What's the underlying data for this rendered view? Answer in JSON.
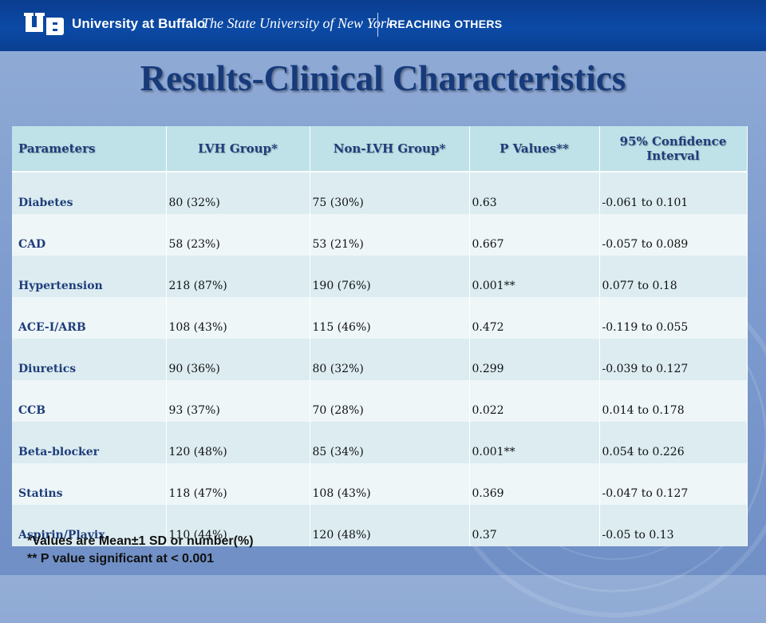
{
  "header": {
    "brand": "University at Buffalo",
    "institution": "The State University of New York",
    "tagline": "REACHING OTHERS"
  },
  "slide": {
    "title": "Results-Clinical Characteristics"
  },
  "table": {
    "columns": [
      "Parameters",
      "LVH Group*",
      "Non-LVH Group*",
      "P Values**",
      "95% Confidence Interval"
    ],
    "rows": [
      {
        "parameter": "Diabetes",
        "lvh": "80 (32%)",
        "non_lvh": "75 (30%)",
        "p": "0.63",
        "ci": "-0.061 to 0.101"
      },
      {
        "parameter": "CAD",
        "lvh": "58 (23%)",
        "non_lvh": "53 (21%)",
        "p": "0.667",
        "ci": "-0.057 to 0.089"
      },
      {
        "parameter": "Hypertension",
        "lvh": "218 (87%)",
        "non_lvh": "190 (76%)",
        "p": "0.001**",
        "ci": "0.077 to 0.18"
      },
      {
        "parameter": "ACE-I/ARB",
        "lvh": "108 (43%)",
        "non_lvh": "115 (46%)",
        "p": "0.472",
        "ci": "-0.119 to 0.055"
      },
      {
        "parameter": "Diuretics",
        "lvh": "90 (36%)",
        "non_lvh": "80 (32%)",
        "p": "0.299",
        "ci": "-0.039 to 0.127"
      },
      {
        "parameter": "CCB",
        "lvh": "93 (37%)",
        "non_lvh": "70 (28%)",
        "p": "0.022",
        "ci": "0.014 to 0.178"
      },
      {
        "parameter": "Beta-blocker",
        "lvh": "120 (48%)",
        "non_lvh": "85 (34%)",
        "p": "0.001**",
        "ci": "0.054 to 0.226"
      },
      {
        "parameter": "Statins",
        "lvh": "118 (47%)",
        "non_lvh": "108 (43%)",
        "p": "0.369",
        "ci": "-0.047 to 0.127"
      },
      {
        "parameter": "Aspirin/Plavix",
        "lvh": "110 (44%)",
        "non_lvh": "120 (48%)",
        "p": "0.37",
        "ci": "-0.05 to 0.13"
      }
    ]
  },
  "footnotes": [
    "*Values are Mean±1 SD or number(%)",
    "** P value significant at < 0.001"
  ],
  "colors": {
    "header_bar": "#0b4aa6",
    "title": "#173a7a",
    "table_header": "#bfe1e8",
    "row_odd": "#dcecf1",
    "row_even": "#eef6f8"
  }
}
